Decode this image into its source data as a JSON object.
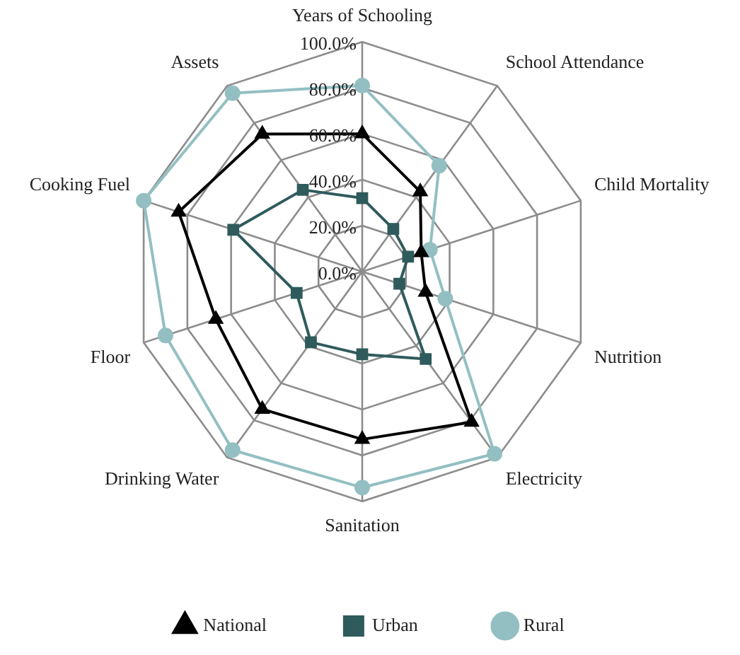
{
  "chart_data": {
    "type": "radar",
    "categories": [
      "Years of Schooling",
      "School Attendance",
      "Child Mortality",
      "Nutrition",
      "Electricity",
      "Sanitation",
      "Drinking Water",
      "Floor",
      "Cooking Fuel",
      "Assets"
    ],
    "series": [
      {
        "name": "National",
        "color": "#000000",
        "marker": "triangle",
        "values": [
          60,
          43,
          27,
          29,
          81,
          73,
          74,
          67,
          84,
          74
        ]
      },
      {
        "name": "Urban",
        "color": "#2f5b5c",
        "marker": "square",
        "values": [
          32,
          23,
          21,
          17,
          47,
          36,
          38,
          30,
          59,
          44
        ]
      },
      {
        "name": "Rural",
        "color": "#93bfc2",
        "marker": "circle",
        "values": [
          81,
          57,
          31,
          38,
          98,
          94,
          96,
          90,
          100,
          96
        ]
      }
    ],
    "ylim": [
      0,
      100
    ],
    "yticks": [
      {
        "value": 0,
        "label": "0.0%"
      },
      {
        "value": 20,
        "label": "20.0%"
      },
      {
        "value": 40,
        "label": "40.0%"
      },
      {
        "value": 60,
        "label": "60.0%"
      },
      {
        "value": 80,
        "label": "80.0%"
      },
      {
        "value": 100,
        "label": "100.0%"
      }
    ],
    "grid": true,
    "legend": "bottom"
  }
}
